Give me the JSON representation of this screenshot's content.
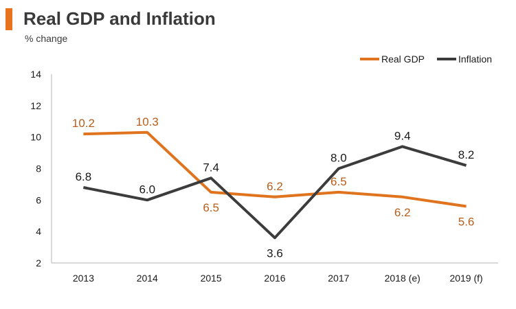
{
  "colors": {
    "accent": "#e8731e",
    "real_gdp": "#e0731d",
    "real_gdp_label": "#b85d1a",
    "inflation": "#3c3c3c",
    "axis": "#b5b5b5",
    "text": "#1a1a1a"
  },
  "chart_data": {
    "type": "line",
    "title": "Real GDP and Inflation",
    "subtitle": "% change",
    "categories": [
      "2013",
      "2014",
      "2015",
      "2016",
      "2017",
      "2018 (e)",
      "2019 (f)"
    ],
    "ylim": [
      2,
      14
    ],
    "yticks": [
      2,
      4,
      6,
      8,
      10,
      12,
      14
    ],
    "grid": false,
    "legend_position": "top-right",
    "series": [
      {
        "name": "Real GDP",
        "key": "real_gdp",
        "values": [
          10.2,
          10.3,
          6.5,
          6.2,
          6.5,
          6.2,
          5.6
        ],
        "labels": [
          "10.2",
          "10.3",
          "6.5",
          "6.2",
          "6.5",
          "6.2",
          "5.6"
        ],
        "label_positions": [
          "above",
          "above",
          "below",
          "above",
          "above",
          "below",
          "below"
        ]
      },
      {
        "name": "Inflation",
        "key": "inflation",
        "values": [
          6.8,
          6.0,
          7.4,
          3.6,
          8.0,
          9.4,
          8.2
        ],
        "labels": [
          "6.8",
          "6.0",
          "7.4",
          "3.6",
          "8.0",
          "9.4",
          "8.2"
        ],
        "label_positions": [
          "above",
          "above",
          "above",
          "below",
          "above",
          "above",
          "above"
        ]
      }
    ]
  }
}
